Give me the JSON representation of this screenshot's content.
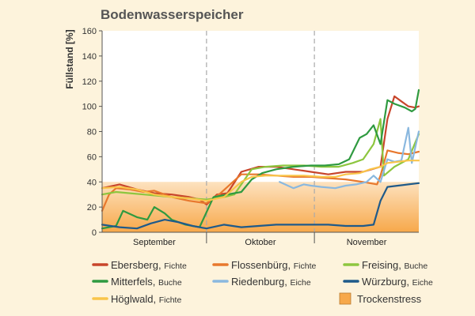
{
  "chart_data": {
    "type": "line",
    "title": "Bodenwasserspeicher",
    "ylabel": "Füllstand [%]",
    "xlabel": "",
    "ylim": [
      0,
      160
    ],
    "yticks": [
      0,
      20,
      40,
      60,
      80,
      100,
      120,
      140,
      160
    ],
    "x_range": [
      0,
      91
    ],
    "months": [
      {
        "label": "September",
        "start": 0,
        "end": 30
      },
      {
        "label": "Oktober",
        "start": 30,
        "end": 61
      },
      {
        "label": "November",
        "start": 61,
        "end": 91
      }
    ],
    "stress_band": {
      "label": "Trockenstress",
      "from": 0,
      "to": 40,
      "color": "#f7a84a"
    },
    "grid": "month-separators-dashed",
    "legend_position": "bottom",
    "series": [
      {
        "name": "Ebersberg",
        "sub": "Fichte",
        "color": "#c8452b",
        "points": [
          [
            0,
            35
          ],
          [
            5,
            38
          ],
          [
            10,
            34
          ],
          [
            15,
            31
          ],
          [
            20,
            30
          ],
          [
            25,
            28
          ],
          [
            28,
            26
          ],
          [
            30,
            22
          ],
          [
            33,
            30
          ],
          [
            36,
            31
          ],
          [
            40,
            48
          ],
          [
            45,
            52
          ],
          [
            50,
            52
          ],
          [
            55,
            50
          ],
          [
            60,
            48
          ],
          [
            65,
            46
          ],
          [
            70,
            48
          ],
          [
            75,
            48
          ],
          [
            80,
            52
          ],
          [
            82,
            90
          ],
          [
            84,
            108
          ],
          [
            86,
            104
          ],
          [
            88,
            100
          ],
          [
            90,
            99
          ],
          [
            91,
            100
          ]
        ]
      },
      {
        "name": "Flossenbürg",
        "sub": "Fichte",
        "color": "#e8782d",
        "points": [
          [
            0,
            17
          ],
          [
            2,
            30
          ],
          [
            4,
            35
          ],
          [
            8,
            34
          ],
          [
            12,
            32
          ],
          [
            15,
            33
          ],
          [
            20,
            28
          ],
          [
            25,
            25
          ],
          [
            30,
            23
          ],
          [
            34,
            31
          ],
          [
            40,
            46
          ],
          [
            45,
            46
          ],
          [
            50,
            45
          ],
          [
            55,
            44
          ],
          [
            60,
            44
          ],
          [
            65,
            43
          ],
          [
            70,
            42
          ],
          [
            75,
            40
          ],
          [
            79,
            38
          ],
          [
            80,
            45
          ],
          [
            82,
            65
          ],
          [
            85,
            63
          ],
          [
            88,
            62
          ],
          [
            91,
            64
          ]
        ]
      },
      {
        "name": "Freising",
        "sub": "Buche",
        "color": "#8dc63f",
        "points": [
          [
            0,
            30
          ],
          [
            4,
            32
          ],
          [
            8,
            31
          ],
          [
            12,
            30
          ],
          [
            16,
            29
          ],
          [
            20,
            28
          ],
          [
            25,
            27
          ],
          [
            30,
            26
          ],
          [
            35,
            28
          ],
          [
            38,
            30
          ],
          [
            40,
            38
          ],
          [
            43,
            50
          ],
          [
            47,
            52
          ],
          [
            52,
            53
          ],
          [
            58,
            53
          ],
          [
            63,
            52
          ],
          [
            68,
            52
          ],
          [
            72,
            55
          ],
          [
            75,
            58
          ],
          [
            78,
            70
          ],
          [
            80,
            90
          ],
          [
            81,
            45
          ],
          [
            84,
            52
          ],
          [
            88,
            58
          ],
          [
            91,
            78
          ]
        ]
      },
      {
        "name": "Mitterfels",
        "sub": "Buche",
        "color": "#2f9a40",
        "points": [
          [
            0,
            3
          ],
          [
            4,
            5
          ],
          [
            6,
            17
          ],
          [
            10,
            12
          ],
          [
            13,
            10
          ],
          [
            15,
            20
          ],
          [
            18,
            15
          ],
          [
            20,
            10
          ],
          [
            22,
            8
          ],
          [
            24,
            6
          ],
          [
            28,
            4
          ],
          [
            32,
            28
          ],
          [
            36,
            30
          ],
          [
            40,
            32
          ],
          [
            43,
            42
          ],
          [
            46,
            47
          ],
          [
            50,
            50
          ],
          [
            55,
            52
          ],
          [
            60,
            53
          ],
          [
            64,
            53
          ],
          [
            68,
            54
          ],
          [
            71,
            58
          ],
          [
            74,
            75
          ],
          [
            76,
            78
          ],
          [
            78,
            85
          ],
          [
            80,
            70
          ],
          [
            82,
            105
          ],
          [
            84,
            102
          ],
          [
            87,
            99
          ],
          [
            89,
            96
          ],
          [
            90,
            98
          ],
          [
            91,
            113
          ]
        ]
      },
      {
        "name": "Riedenburg",
        "sub": "Eiche",
        "color": "#8ab8df",
        "points": [
          [
            51,
            40
          ],
          [
            55,
            35
          ],
          [
            58,
            38
          ],
          [
            60,
            37
          ],
          [
            63,
            36
          ],
          [
            67,
            35
          ],
          [
            70,
            37
          ],
          [
            73,
            38
          ],
          [
            76,
            40
          ],
          [
            78,
            45
          ],
          [
            80,
            40
          ],
          [
            82,
            58
          ],
          [
            84,
            56
          ],
          [
            86,
            57
          ],
          [
            88,
            83
          ],
          [
            89,
            55
          ],
          [
            91,
            80
          ]
        ]
      },
      {
        "name": "Würzburg",
        "sub": "Eiche",
        "color": "#1f5a8a",
        "points": [
          [
            0,
            6
          ],
          [
            5,
            4
          ],
          [
            10,
            3
          ],
          [
            14,
            7
          ],
          [
            18,
            10
          ],
          [
            22,
            8
          ],
          [
            26,
            5
          ],
          [
            30,
            3
          ],
          [
            35,
            6
          ],
          [
            40,
            4
          ],
          [
            45,
            5
          ],
          [
            50,
            6
          ],
          [
            55,
            6
          ],
          [
            60,
            6
          ],
          [
            65,
            6
          ],
          [
            70,
            5
          ],
          [
            75,
            5
          ],
          [
            78,
            6
          ],
          [
            80,
            25
          ],
          [
            82,
            36
          ],
          [
            85,
            37
          ],
          [
            88,
            38
          ],
          [
            91,
            39
          ]
        ]
      },
      {
        "name": "Höglwald",
        "sub": "Fichte",
        "color": "#f9c54a",
        "points": [
          [
            0,
            35
          ],
          [
            5,
            36
          ],
          [
            10,
            34
          ],
          [
            15,
            30
          ],
          [
            20,
            28
          ],
          [
            25,
            27
          ],
          [
            30,
            25
          ],
          [
            35,
            28
          ],
          [
            40,
            40
          ],
          [
            43,
            44
          ],
          [
            47,
            45
          ],
          [
            52,
            45
          ],
          [
            58,
            45
          ],
          [
            63,
            44
          ],
          [
            67,
            44
          ],
          [
            70,
            46
          ],
          [
            74,
            47
          ],
          [
            77,
            50
          ],
          [
            80,
            52
          ],
          [
            82,
            55
          ],
          [
            85,
            56
          ],
          [
            88,
            57
          ],
          [
            91,
            57
          ]
        ]
      }
    ]
  }
}
